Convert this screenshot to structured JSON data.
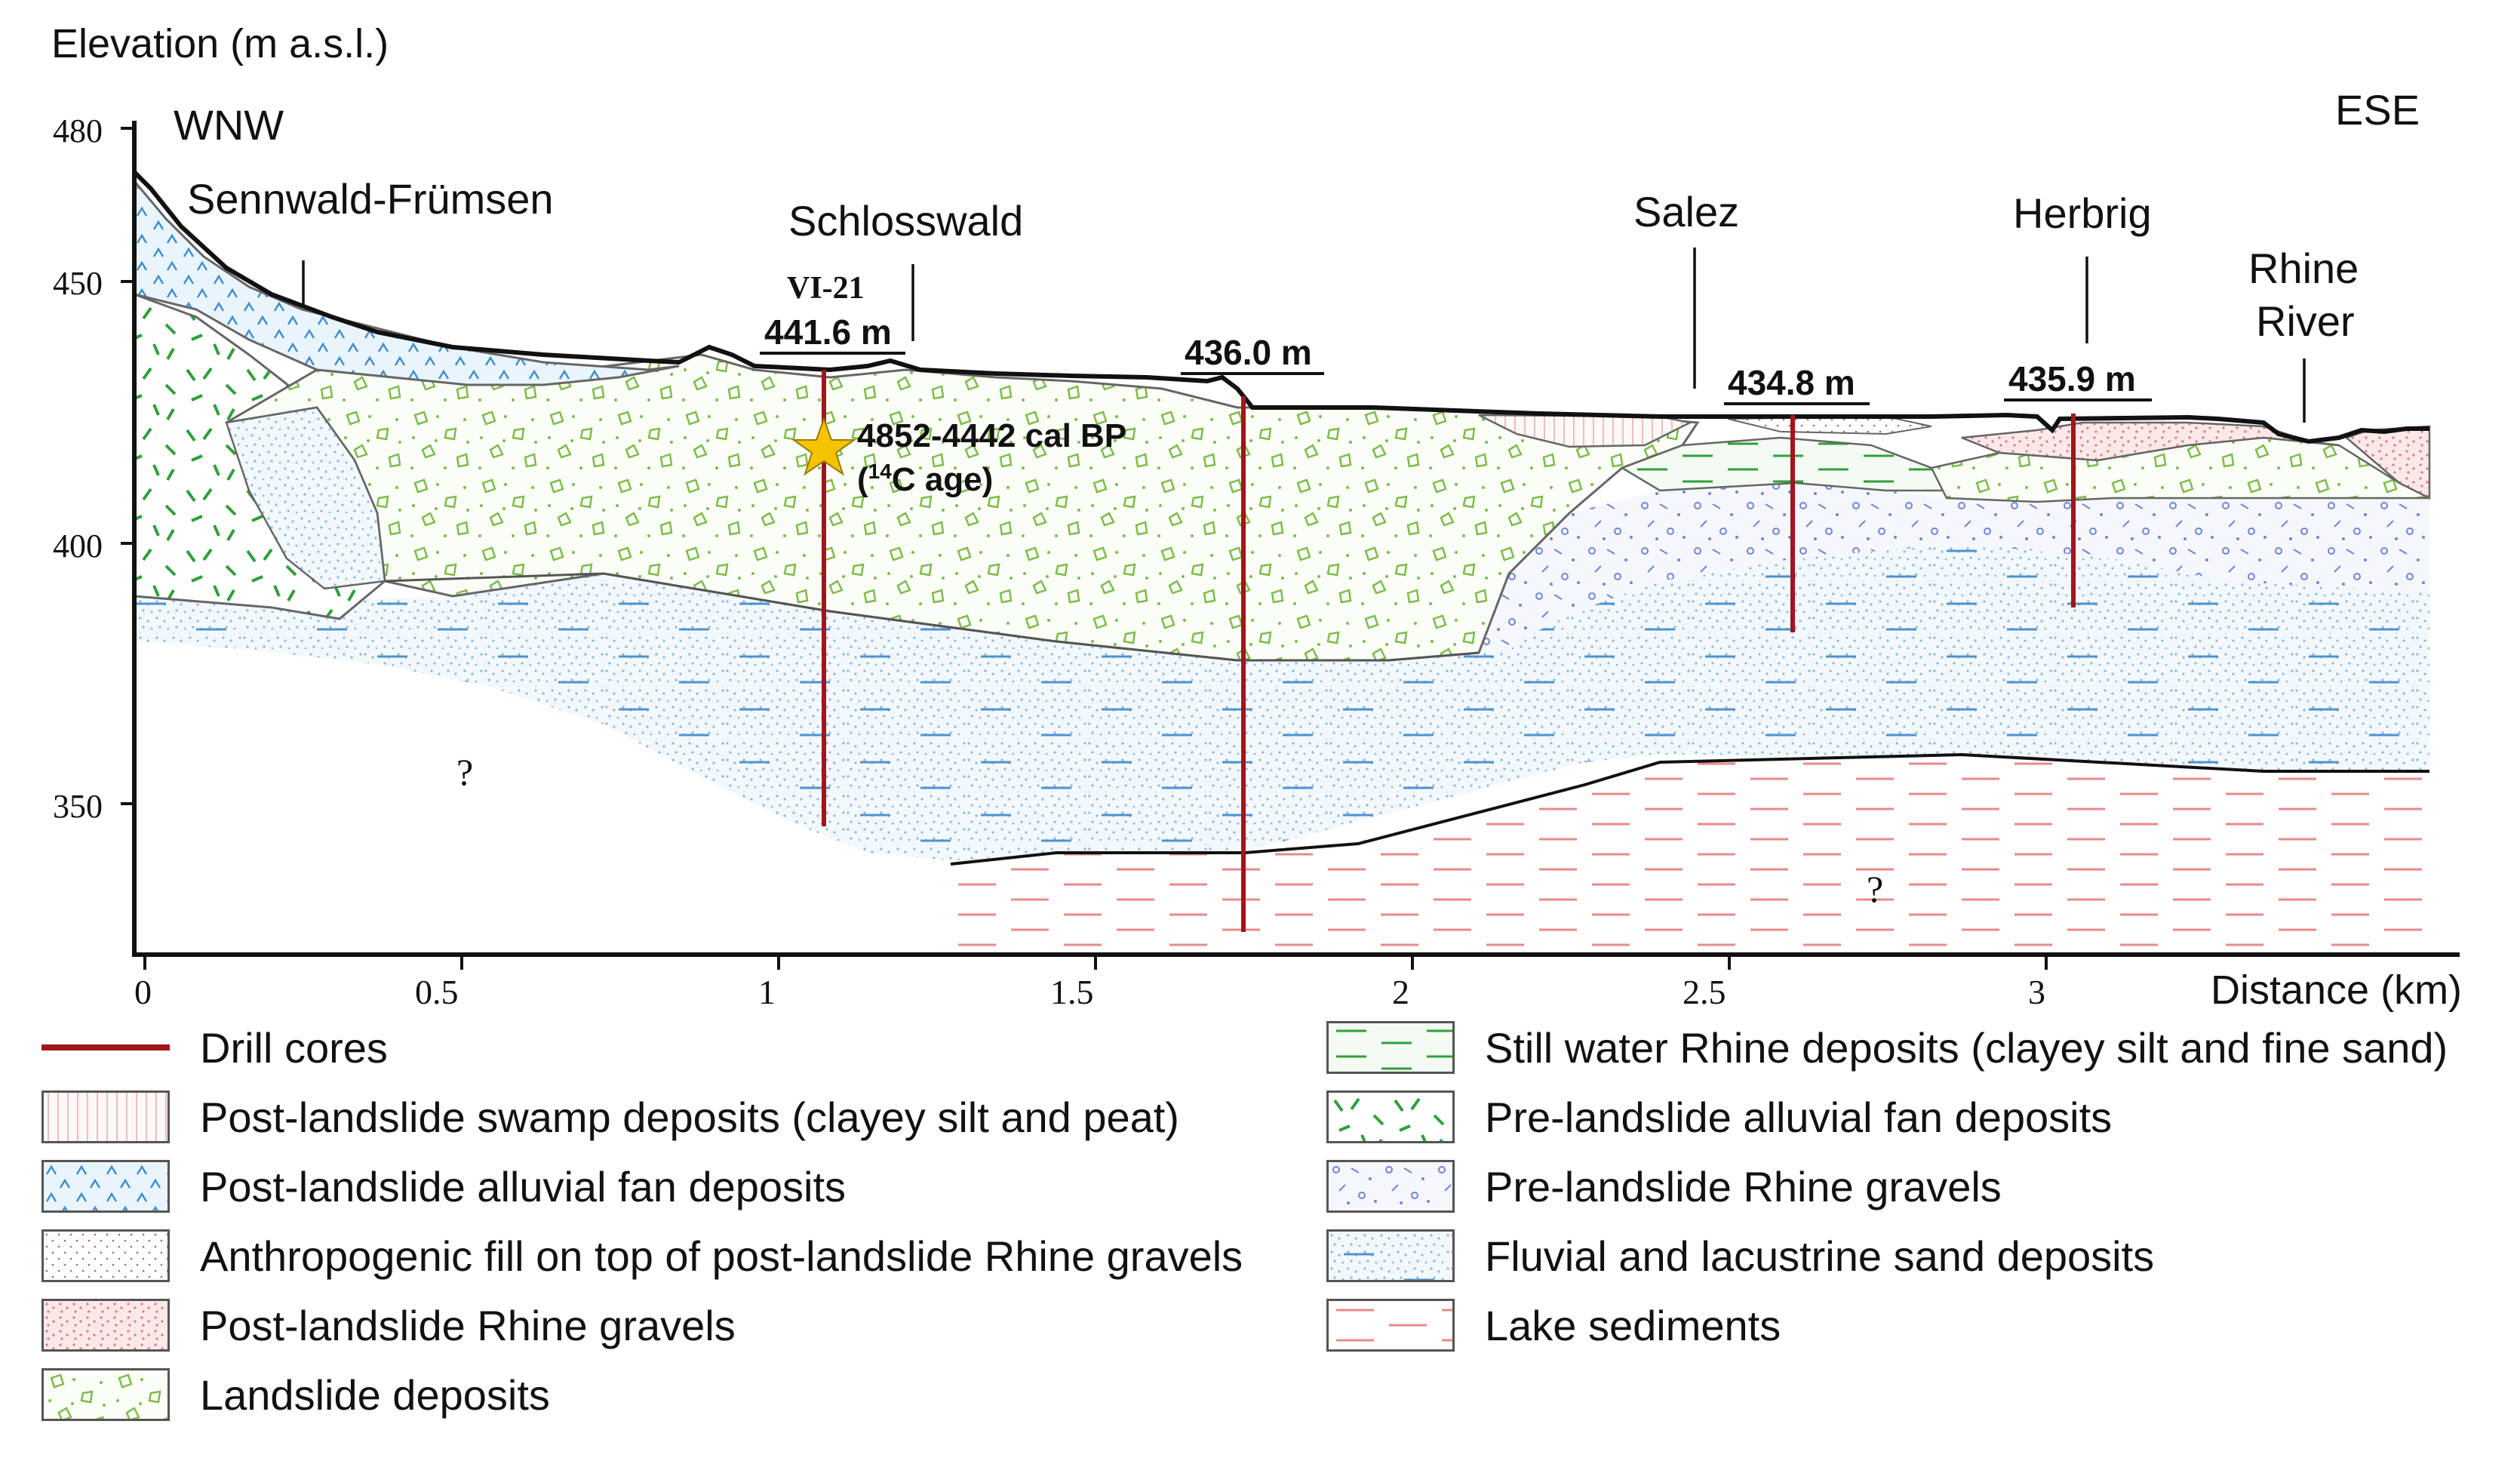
{
  "figure": {
    "y_axis_title": "Elevation (m a.s.l.)",
    "x_axis_title": "Distance (km)",
    "y_ticks": [
      "480",
      "450",
      "400",
      "350"
    ],
    "x_ticks": [
      "0",
      "0.5",
      "1",
      "1.5",
      "2",
      "2.5",
      "3"
    ],
    "direction_left": "WNW",
    "direction_right": "ESE",
    "unknown_mark": "?"
  },
  "places": {
    "sennwald": "Sennwald-Frümsen",
    "schlosswald": "Schlosswald",
    "salez": "Salez",
    "herbrig": "Herbrig",
    "rhine_line1": "Rhine",
    "rhine_line2": "River"
  },
  "cores": {
    "vi21": "VI-21",
    "c1_elev": "441.6 m",
    "c2_elev": "436.0 m",
    "c3_elev": "434.8 m",
    "c4_elev": "435.9 m",
    "age_line1": "4852-4442 cal BP",
    "age_line2_pre": "(",
    "age_sup": "14",
    "age_line2_post": "C age)"
  },
  "legend": {
    "drill": "Drill cores",
    "swamp": "Post-landslide swamp deposits (clayey silt and peat)",
    "fan_post": "Post-landslide alluvial fan deposits",
    "anthro": "Anthropogenic fill on top of post-landslide Rhine gravels",
    "rhine_post": "Post-landslide Rhine gravels",
    "landslide": "Landslide deposits",
    "still": "Still water Rhine deposits (clayey silt and fine sand)",
    "fan_pre": "Pre-landslide alluvial fan deposits",
    "rhine_pre": "Pre-landslide Rhine gravels",
    "fluvial": "Fluvial and lacustrine sand deposits",
    "lake": "Lake sediments"
  },
  "colors": {
    "drill": "#a0161c",
    "landslide": "#7cbd4a",
    "fan_post": "#3f8fd2",
    "fan_pre": "#2fa03a",
    "rhine_pre": "#6f86d6",
    "fluvial": "#8fb8dc",
    "lake": "#e88a8a",
    "star": "#f5c400"
  }
}
